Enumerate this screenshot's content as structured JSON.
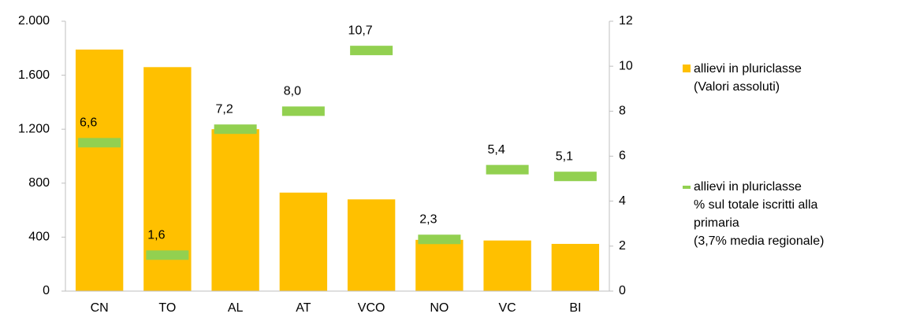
{
  "chart_data": {
    "type": "bar",
    "categories": [
      "CN",
      "TO",
      "AL",
      "AT",
      "VCO",
      "NO",
      "VC",
      "BI"
    ],
    "series": [
      {
        "name": "allievi in pluriclasse\n(Valori assoluti)",
        "color": "#ffc000",
        "values": [
          1790,
          1660,
          1200,
          730,
          680,
          380,
          375,
          350
        ]
      },
      {
        "name": "allievi in pluriclasse\n% sul totale iscritti alla\nprimaria\n(3,7% media regionale)",
        "color": "#92d050",
        "axis": "y2",
        "marker": "dash",
        "values": [
          6.6,
          1.6,
          7.2,
          8.0,
          10.7,
          2.3,
          5.4,
          5.1
        ],
        "value_labels": [
          "6,6",
          "1,6",
          "7,2",
          "8,0",
          "10,7",
          "2,3",
          "5,4",
          "5,1"
        ]
      }
    ],
    "ylim": [
      0,
      2000
    ],
    "yticks": [
      0,
      400,
      800,
      {
        "value": 1200,
        "label": "1.200"
      },
      {
        "value": 1600,
        "label": "1.600"
      },
      {
        "value": 2000,
        "label": "2.000"
      }
    ],
    "y2lim": [
      0,
      12
    ],
    "y2ticks": [
      0,
      2,
      4,
      6,
      8,
      10,
      12
    ],
    "legend": "right"
  }
}
